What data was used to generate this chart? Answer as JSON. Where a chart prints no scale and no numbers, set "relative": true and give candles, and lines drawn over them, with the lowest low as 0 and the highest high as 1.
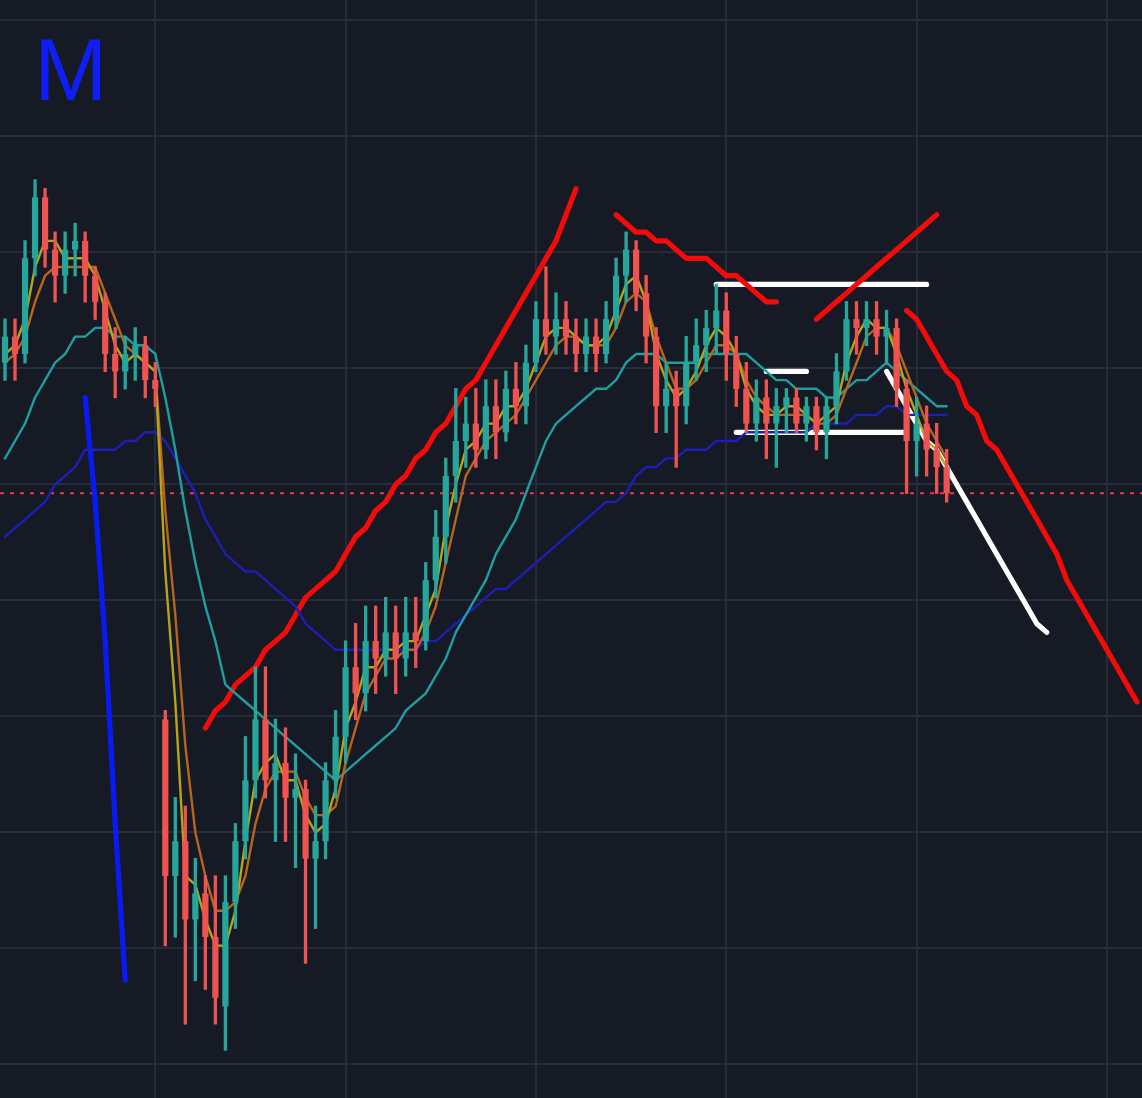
{
  "chart_data": {
    "type": "candlestick",
    "relative": true,
    "grid": true,
    "tick_labels": false,
    "marker": "none",
    "categories": [
      null,
      null,
      null,
      null,
      null,
      null,
      null,
      null,
      null,
      null,
      null,
      null,
      null,
      null,
      null,
      null,
      null,
      null,
      null,
      null,
      null,
      null,
      null,
      null,
      null,
      null,
      null,
      null,
      null,
      null,
      null,
      null,
      null,
      null,
      null,
      null,
      null,
      null,
      null,
      null,
      null,
      null,
      null,
      null,
      null,
      null,
      null,
      null,
      null,
      null,
      null,
      null,
      null,
      null,
      null,
      null,
      null,
      null,
      null,
      null,
      null,
      null,
      null,
      null,
      null,
      null,
      null,
      null,
      null,
      null,
      null,
      null,
      null,
      null,
      null,
      null,
      null,
      null,
      null,
      null,
      null,
      null,
      null,
      null,
      null,
      null,
      null,
      null,
      null,
      null,
      null,
      null,
      null,
      null,
      null,
      null,
      null,
      null,
      null,
      null,
      null,
      null,
      null,
      null,
      null,
      null,
      null,
      null,
      null,
      null,
      null,
      null,
      null,
      null
    ],
    "ohlc": [
      [
        0.79,
        0.84,
        0.77,
        0.82
      ],
      [
        0.82,
        0.84,
        0.77,
        0.8
      ],
      [
        0.8,
        0.93,
        0.79,
        0.91
      ],
      [
        0.91,
        1.0,
        0.89,
        0.98
      ],
      [
        0.98,
        0.99,
        0.9,
        0.92
      ],
      [
        0.92,
        0.94,
        0.86,
        0.89
      ],
      [
        0.89,
        0.94,
        0.87,
        0.92
      ],
      [
        0.92,
        0.95,
        0.89,
        0.93
      ],
      [
        0.93,
        0.94,
        0.86,
        0.89
      ],
      [
        0.89,
        0.9,
        0.84,
        0.86
      ],
      [
        0.86,
        0.87,
        0.78,
        0.8
      ],
      [
        0.8,
        0.83,
        0.75,
        0.78
      ],
      [
        0.78,
        0.82,
        0.76,
        0.8
      ],
      [
        0.8,
        0.83,
        0.77,
        0.81
      ],
      [
        0.81,
        0.82,
        0.75,
        0.77
      ],
      [
        0.77,
        0.79,
        0.74,
        0.76
      ],
      [
        0.38,
        0.39,
        0.12,
        0.2
      ],
      [
        0.2,
        0.29,
        0.13,
        0.24
      ],
      [
        0.24,
        0.28,
        0.03,
        0.15
      ],
      [
        0.15,
        0.22,
        0.08,
        0.18
      ],
      [
        0.18,
        0.2,
        0.07,
        0.13
      ],
      [
        0.13,
        0.2,
        0.03,
        0.06
      ],
      [
        0.05,
        0.2,
        0,
        0.17
      ],
      [
        0.17,
        0.26,
        0.14,
        0.24
      ],
      [
        0.24,
        0.36,
        0.22,
        0.31
      ],
      [
        0.31,
        0.44,
        0.29,
        0.38
      ],
      [
        0.38,
        0.44,
        0.29,
        0.31
      ],
      [
        0.31,
        0.38,
        0.24,
        0.33
      ],
      [
        0.33,
        0.37,
        0.24,
        0.29
      ],
      [
        0.29,
        0.34,
        0.21,
        0.3
      ],
      [
        0.3,
        0.31,
        0.1,
        0.22
      ],
      [
        0.22,
        0.28,
        0.14,
        0.24
      ],
      [
        0.24,
        0.33,
        0.22,
        0.31
      ],
      [
        0.31,
        0.39,
        0.29,
        0.36
      ],
      [
        0.36,
        0.47,
        0.33,
        0.44
      ],
      [
        0.44,
        0.49,
        0.38,
        0.41
      ],
      [
        0.41,
        0.51,
        0.39,
        0.47
      ],
      [
        0.47,
        0.51,
        0.41,
        0.45
      ],
      [
        0.45,
        0.52,
        0.43,
        0.48
      ],
      [
        0.48,
        0.51,
        0.41,
        0.45
      ],
      [
        0.45,
        0.52,
        0.43,
        0.48
      ],
      [
        0.48,
        0.52,
        0.44,
        0.47
      ],
      [
        0.47,
        0.56,
        0.46,
        0.54
      ],
      [
        0.54,
        0.62,
        0.52,
        0.59
      ],
      [
        0.59,
        0.68,
        0.56,
        0.66
      ],
      [
        0.66,
        0.76,
        0.63,
        0.7
      ],
      [
        0.7,
        0.75,
        0.67,
        0.72
      ],
      [
        0.72,
        0.76,
        0.67,
        0.69
      ],
      [
        0.69,
        0.77,
        0.68,
        0.74
      ],
      [
        0.74,
        0.77,
        0.68,
        0.71
      ],
      [
        0.71,
        0.78,
        0.7,
        0.76
      ],
      [
        0.76,
        0.79,
        0.72,
        0.74
      ],
      [
        0.74,
        0.81,
        0.72,
        0.79
      ],
      [
        0.79,
        0.86,
        0.78,
        0.84
      ],
      [
        0.84,
        0.9,
        0.8,
        0.82
      ],
      [
        0.82,
        0.87,
        0.8,
        0.84
      ],
      [
        0.84,
        0.86,
        0.8,
        0.82
      ],
      [
        0.82,
        0.84,
        0.78,
        0.8
      ],
      [
        0.8,
        0.84,
        0.78,
        0.82
      ],
      [
        0.82,
        0.84,
        0.78,
        0.8
      ],
      [
        0.8,
        0.86,
        0.79,
        0.84
      ],
      [
        0.84,
        0.91,
        0.83,
        0.89
      ],
      [
        0.89,
        0.94,
        0.86,
        0.92
      ],
      [
        0.92,
        0.93,
        0.85,
        0.87
      ],
      [
        0.87,
        0.89,
        0.79,
        0.82
      ],
      [
        0.82,
        0.83,
        0.71,
        0.74
      ],
      [
        0.74,
        0.79,
        0.71,
        0.76
      ],
      [
        0.76,
        0.78,
        0.67,
        0.74
      ],
      [
        0.74,
        0.82,
        0.72,
        0.79
      ],
      [
        0.79,
        0.84,
        0.77,
        0.81
      ],
      [
        0.81,
        0.85,
        0.78,
        0.83
      ],
      [
        0.83,
        0.88,
        0.8,
        0.85
      ],
      [
        0.85,
        0.87,
        0.77,
        0.8
      ],
      [
        0.8,
        0.82,
        0.74,
        0.76
      ],
      [
        0.76,
        0.79,
        0.71,
        0.72
      ],
      [
        0.72,
        0.77,
        0.7,
        0.75
      ],
      [
        0.75,
        0.77,
        0.68,
        0.72
      ],
      [
        0.72,
        0.76,
        0.67,
        0.74
      ],
      [
        0.74,
        0.76,
        0.71,
        0.75
      ],
      [
        0.75,
        0.76,
        0.71,
        0.72
      ],
      [
        0.72,
        0.75,
        0.7,
        0.74
      ],
      [
        0.74,
        0.75,
        0.69,
        0.71
      ],
      [
        0.71,
        0.75,
        0.68,
        0.74
      ],
      [
        0.74,
        0.8,
        0.72,
        0.78
      ],
      [
        0.78,
        0.86,
        0.77,
        0.84
      ],
      [
        0.84,
        0.86,
        0.8,
        0.83
      ],
      [
        0.83,
        0.86,
        0.81,
        0.84
      ],
      [
        0.84,
        0.86,
        0.8,
        0.82
      ],
      [
        0.82,
        0.85,
        0.79,
        0.83
      ],
      [
        0.83,
        0.84,
        0.74,
        0.76
      ],
      [
        0.76,
        0.77,
        0.64,
        0.7
      ],
      [
        0.7,
        0.75,
        0.66,
        0.72
      ],
      [
        0.72,
        0.74,
        0.66,
        0.69
      ],
      [
        0.69,
        0.72,
        0.64,
        0.67
      ],
      [
        0.67,
        0.69,
        0.63,
        0.64
      ],
      null,
      null,
      null,
      null,
      null,
      null,
      null,
      null,
      null,
      null,
      null,
      null,
      null,
      null,
      null,
      null,
      null,
      null,
      null
    ],
    "colors": [
      "#26a69a",
      "#ef5350",
      "#26a69a",
      "#26a69a",
      "#ef5350",
      "#ef5350",
      "#26a69a",
      "#26a69a",
      "#ef5350",
      "#ef5350",
      "#ef5350",
      "#ef5350",
      "#26a69a",
      "#26a69a",
      "#ef5350",
      "#ef5350",
      "#ef5350",
      "#26a69a",
      "#ef5350",
      "#26a69a",
      "#ef5350",
      "#ef5350",
      "#26a69a",
      "#26a69a",
      "#26a69a",
      "#26a69a",
      "#ef5350",
      "#26a69a",
      "#ef5350",
      "#26a69a",
      "#ef5350",
      "#26a69a",
      "#26a69a",
      "#26a69a",
      "#26a69a",
      "#ef5350",
      "#26a69a",
      "#ef5350",
      "#26a69a",
      "#ef5350",
      "#26a69a",
      "#ef5350",
      "#26a69a",
      "#26a69a",
      "#26a69a",
      "#26a69a",
      "#26a69a",
      "#ef5350",
      "#26a69a",
      "#ef5350",
      "#26a69a",
      "#ef5350",
      "#26a69a",
      "#26a69a",
      "#ef5350",
      "#26a69a",
      "#ef5350",
      "#ef5350",
      "#26a69a",
      "#ef5350",
      "#26a69a",
      "#26a69a",
      "#26a69a",
      "#ef5350",
      "#ef5350",
      "#ef5350",
      "#26a69a",
      "#ef5350",
      "#26a69a",
      "#26a69a",
      "#26a69a",
      "#26a69a",
      "#ef5350",
      "#ef5350",
      "#ef5350",
      "#26a69a",
      "#ef5350",
      "#26a69a",
      "#26a69a",
      "#ef5350",
      "#26a69a",
      "#ef5350",
      "#26a69a",
      "#26a69a",
      "#26a69a",
      "#ef5350",
      "#26a69a",
      "#ef5350",
      "#26a69a",
      "#ef5350",
      "#ef5350",
      "#26a69a",
      "#ef5350",
      "#ef5350",
      "#ef5350",
      null,
      null,
      null,
      null,
      null,
      null,
      null,
      null,
      null,
      null,
      null,
      null,
      null,
      null,
      null,
      null,
      null,
      null,
      null
    ],
    "series": [
      {
        "type": "line",
        "color": "#b8a41a",
        "values": [
          0.8,
          0.81,
          0.84,
          0.9,
          0.93,
          0.93,
          0.91,
          0.91,
          0.91,
          0.89,
          0.85,
          0.81,
          0.79,
          0.8,
          0.79,
          0.78,
          0.55,
          0.4,
          0.2,
          0.19,
          0.15,
          0.12,
          0.12,
          0.16,
          0.24,
          0.31,
          0.33,
          0.34,
          0.31,
          0.31,
          0.27,
          0.25,
          0.26,
          0.3,
          0.37,
          0.4,
          0.44,
          0.44,
          0.46,
          0.46,
          0.47,
          0.47,
          0.5,
          0.53,
          0.6,
          0.65,
          0.69,
          0.7,
          0.72,
          0.72,
          0.74,
          0.74,
          0.76,
          0.79,
          0.82,
          0.83,
          0.83,
          0.82,
          0.81,
          0.81,
          0.82,
          0.85,
          0.88,
          0.89,
          0.86,
          0.8,
          0.77,
          0.75,
          0.76,
          0.78,
          0.81,
          0.83,
          0.82,
          0.8,
          0.76,
          0.74,
          0.73,
          0.73,
          0.74,
          0.74,
          0.73,
          0.72,
          0.73,
          0.74,
          0.79,
          0.82,
          0.84,
          0.83,
          0.83,
          0.8,
          0.76,
          0.73,
          0.7,
          0.69,
          0.67,
          null,
          null,
          null,
          null,
          null,
          null,
          null,
          null,
          null,
          null,
          null,
          null,
          null,
          null,
          null,
          null,
          null,
          null,
          null
        ]
      },
      {
        "type": "line",
        "color": "#b8641e",
        "values": [
          0.79,
          0.8,
          0.82,
          0.86,
          0.89,
          0.9,
          0.9,
          0.9,
          0.9,
          0.9,
          0.87,
          0.84,
          0.81,
          0.8,
          0.79,
          0.78,
          0.62,
          0.5,
          0.35,
          0.25,
          0.2,
          0.16,
          0.16,
          0.17,
          0.2,
          0.26,
          0.3,
          0.32,
          0.32,
          0.32,
          0.29,
          0.27,
          0.27,
          0.28,
          0.33,
          0.37,
          0.41,
          0.43,
          0.45,
          0.45,
          0.46,
          0.46,
          0.48,
          0.51,
          0.56,
          0.61,
          0.66,
          0.68,
          0.7,
          0.71,
          0.72,
          0.73,
          0.75,
          0.77,
          0.79,
          0.81,
          0.82,
          0.82,
          0.81,
          0.81,
          0.81,
          0.83,
          0.86,
          0.87,
          0.86,
          0.82,
          0.79,
          0.76,
          0.76,
          0.77,
          0.79,
          0.81,
          0.81,
          0.8,
          0.77,
          0.75,
          0.74,
          0.73,
          0.73,
          0.73,
          0.73,
          0.72,
          0.72,
          0.73,
          0.76,
          0.79,
          0.82,
          0.83,
          0.83,
          0.81,
          0.78,
          0.75,
          0.72,
          0.7,
          0.68,
          null,
          null,
          null,
          null,
          null,
          null,
          null,
          null,
          null,
          null,
          null,
          null,
          null,
          null,
          null,
          null,
          null,
          null,
          null
        ]
      },
      {
        "type": "line",
        "color": "#1f9ea0",
        "values": [
          0.68,
          0.7,
          0.72,
          0.75,
          0.77,
          0.79,
          0.8,
          0.82,
          0.82,
          0.83,
          0.83,
          0.82,
          0.82,
          0.81,
          0.81,
          0.8,
          0.75,
          0.69,
          0.62,
          0.56,
          0.51,
          0.47,
          0.42,
          0.41,
          0.4,
          0.39,
          0.38,
          0.37,
          0.36,
          0.35,
          0.34,
          0.33,
          0.32,
          0.31,
          0.32,
          0.33,
          0.34,
          0.35,
          0.36,
          0.37,
          0.39,
          0.4,
          0.41,
          0.43,
          0.45,
          0.48,
          0.5,
          0.52,
          0.54,
          0.57,
          0.59,
          0.61,
          0.64,
          0.67,
          0.7,
          0.72,
          0.73,
          0.74,
          0.75,
          0.76,
          0.76,
          0.77,
          0.79,
          0.8,
          0.8,
          0.8,
          0.79,
          0.79,
          0.79,
          0.79,
          0.8,
          0.8,
          0.8,
          0.8,
          0.8,
          0.79,
          0.78,
          0.77,
          0.77,
          0.76,
          0.76,
          0.76,
          0.75,
          0.75,
          0.76,
          0.77,
          0.77,
          0.78,
          0.79,
          0.78,
          0.77,
          0.76,
          0.75,
          0.74,
          0.74,
          null,
          null,
          null,
          null,
          null,
          null,
          null,
          null,
          null,
          null,
          null,
          null,
          null,
          null,
          null,
          null,
          null,
          null,
          null
        ]
      },
      {
        "type": "line",
        "color": "#1c1fb5",
        "values": [
          0.59,
          0.6,
          0.61,
          0.62,
          0.63,
          0.65,
          0.66,
          0.67,
          0.69,
          0.69,
          0.69,
          0.69,
          0.7,
          0.7,
          0.71,
          0.71,
          0.7,
          0.68,
          0.66,
          0.64,
          0.61,
          0.59,
          0.57,
          0.56,
          0.55,
          0.55,
          0.54,
          0.53,
          0.52,
          0.51,
          0.49,
          0.48,
          0.47,
          0.46,
          0.46,
          0.46,
          0.46,
          0.46,
          0.46,
          0.46,
          0.46,
          0.46,
          0.47,
          0.47,
          0.48,
          0.49,
          0.5,
          0.51,
          0.52,
          0.53,
          0.53,
          0.54,
          0.55,
          0.56,
          0.57,
          0.58,
          0.59,
          0.6,
          0.61,
          0.62,
          0.63,
          0.63,
          0.64,
          0.66,
          0.67,
          0.67,
          0.68,
          0.68,
          0.69,
          0.69,
          0.69,
          0.7,
          0.7,
          0.7,
          0.71,
          0.71,
          0.71,
          0.71,
          0.71,
          0.71,
          0.71,
          0.72,
          0.72,
          0.72,
          0.72,
          0.73,
          0.73,
          0.73,
          0.74,
          0.74,
          0.73,
          0.73,
          0.73,
          0.73,
          0.73,
          null,
          null,
          null,
          null,
          null,
          null,
          null,
          null,
          null,
          null,
          null,
          null,
          null,
          null,
          null,
          null,
          null,
          null,
          null
        ]
      },
      {
        "type": "line",
        "color": "#f50a0a",
        "values": [
          null,
          null,
          null,
          null,
          null,
          null,
          null,
          null,
          null,
          null,
          null,
          null,
          null,
          null,
          null,
          null,
          null,
          null,
          null,
          null,
          0.37,
          0.39,
          0.4,
          0.42,
          0.43,
          0.44,
          0.46,
          0.47,
          0.48,
          0.5,
          0.52,
          0.53,
          0.54,
          0.55,
          0.57,
          0.59,
          0.6,
          0.62,
          0.63,
          0.65,
          0.66,
          0.68,
          0.69,
          0.71,
          0.72,
          0.74,
          0.76,
          0.77,
          0.79,
          0.81,
          0.83,
          0.85,
          0.87,
          0.89,
          0.91,
          0.93,
          0.96,
          0.99,
          null,
          null,
          null,
          null,
          null,
          null,
          null,
          null,
          null,
          null,
          null,
          null,
          null,
          null,
          null,
          null,
          null,
          null,
          null,
          null,
          null,
          null,
          null,
          null,
          null,
          null,
          null,
          null,
          null,
          null,
          null,
          null,
          null,
          null,
          null,
          null,
          null,
          null,
          null,
          null,
          null,
          null,
          null,
          null,
          null,
          null,
          null,
          null,
          null,
          null,
          null,
          null,
          null,
          null,
          null,
          null
        ]
      },
      {
        "type": "line",
        "color": "#f50a0a",
        "values": [
          null,
          null,
          null,
          null,
          null,
          null,
          null,
          null,
          null,
          null,
          null,
          null,
          null,
          null,
          null,
          null,
          null,
          null,
          null,
          null,
          null,
          null,
          null,
          null,
          null,
          null,
          null,
          null,
          null,
          null,
          null,
          null,
          null,
          null,
          null,
          null,
          null,
          null,
          null,
          null,
          null,
          null,
          null,
          null,
          null,
          null,
          null,
          null,
          null,
          null,
          null,
          null,
          null,
          null,
          null,
          null,
          null,
          null,
          null,
          null,
          null,
          0.96,
          0.95,
          0.94,
          0.94,
          0.93,
          0.93,
          0.92,
          0.91,
          0.91,
          0.91,
          0.9,
          0.89,
          0.89,
          0.88,
          0.87,
          0.86,
          0.86,
          null,
          null,
          null,
          null,
          null,
          null,
          null,
          null,
          null,
          null,
          null,
          null,
          null,
          null,
          null,
          null,
          null,
          null,
          null,
          null,
          null,
          null,
          null,
          null,
          null,
          null,
          null,
          null,
          null,
          null,
          null,
          null,
          null,
          null,
          null,
          null
        ]
      },
      {
        "type": "line",
        "color": "#f50a0a",
        "values": [
          null,
          null,
          null,
          null,
          null,
          null,
          null,
          null,
          null,
          null,
          null,
          null,
          null,
          null,
          null,
          null,
          null,
          null,
          null,
          null,
          null,
          null,
          null,
          null,
          null,
          null,
          null,
          null,
          null,
          null,
          null,
          null,
          null,
          null,
          null,
          null,
          null,
          null,
          null,
          null,
          null,
          null,
          null,
          null,
          null,
          null,
          null,
          null,
          null,
          null,
          null,
          null,
          null,
          null,
          null,
          null,
          null,
          null,
          null,
          null,
          null,
          null,
          null,
          null,
          null,
          null,
          null,
          null,
          null,
          null,
          null,
          null,
          null,
          null,
          null,
          null,
          null,
          null,
          null,
          null,
          null,
          0.84,
          0.85,
          0.86,
          0.87,
          0.88,
          0.89,
          0.9,
          0.91,
          0.92,
          0.93,
          0.94,
          0.95,
          0.96,
          null,
          null,
          null,
          null,
          null,
          null,
          null,
          null,
          null,
          null,
          null,
          null,
          null,
          null,
          null,
          null,
          null,
          null,
          null,
          null
        ]
      },
      {
        "type": "line",
        "color": "#f50a0a",
        "values": [
          null,
          null,
          null,
          null,
          null,
          null,
          null,
          null,
          null,
          null,
          null,
          null,
          null,
          null,
          null,
          null,
          null,
          null,
          null,
          null,
          null,
          null,
          null,
          null,
          null,
          null,
          null,
          null,
          null,
          null,
          null,
          null,
          null,
          null,
          null,
          null,
          null,
          null,
          null,
          null,
          null,
          null,
          null,
          null,
          null,
          null,
          null,
          null,
          null,
          null,
          null,
          null,
          null,
          null,
          null,
          null,
          null,
          null,
          null,
          null,
          null,
          null,
          null,
          null,
          null,
          null,
          null,
          null,
          null,
          null,
          null,
          null,
          null,
          null,
          null,
          null,
          null,
          null,
          null,
          null,
          null,
          null,
          null,
          null,
          null,
          null,
          null,
          null,
          null,
          null,
          0.85,
          0.84,
          0.82,
          0.8,
          0.78,
          0.77,
          0.74,
          0.73,
          0.7,
          0.69,
          0.67,
          0.65,
          0.63,
          0.61,
          0.59,
          0.57,
          0.54,
          0.52,
          0.5,
          0.48,
          0.46,
          0.44,
          0.42,
          0.4
        ]
      },
      {
        "type": "line",
        "color": "#ffffff",
        "values": [
          null,
          null,
          null,
          null,
          null,
          null,
          null,
          null,
          null,
          null,
          null,
          null,
          null,
          null,
          null,
          null,
          null,
          null,
          null,
          null,
          null,
          null,
          null,
          null,
          null,
          null,
          null,
          null,
          null,
          null,
          null,
          null,
          null,
          null,
          null,
          null,
          null,
          null,
          null,
          null,
          null,
          null,
          null,
          null,
          null,
          null,
          null,
          null,
          null,
          null,
          null,
          null,
          null,
          null,
          null,
          null,
          null,
          null,
          null,
          null,
          null,
          null,
          null,
          null,
          null,
          null,
          null,
          null,
          null,
          null,
          null,
          0.88,
          0.88,
          0.88,
          0.88,
          0.88,
          0.88,
          0.88,
          0.88,
          0.88,
          0.88,
          0.88,
          0.88,
          0.88,
          0.88,
          0.88,
          0.88,
          0.88,
          0.88,
          0.88,
          0.88,
          0.88,
          0.88,
          null,
          null,
          null,
          null,
          null,
          null,
          null,
          null,
          null,
          null,
          null,
          null,
          null,
          null,
          null,
          null,
          null,
          null,
          null,
          null,
          null
        ]
      },
      {
        "type": "line",
        "color": "#ffffff",
        "values": [
          null,
          null,
          null,
          null,
          null,
          null,
          null,
          null,
          null,
          null,
          null,
          null,
          null,
          null,
          null,
          null,
          null,
          null,
          null,
          null,
          null,
          null,
          null,
          null,
          null,
          null,
          null,
          null,
          null,
          null,
          null,
          null,
          null,
          null,
          null,
          null,
          null,
          null,
          null,
          null,
          null,
          null,
          null,
          null,
          null,
          null,
          null,
          null,
          null,
          null,
          null,
          null,
          null,
          null,
          null,
          null,
          null,
          null,
          null,
          null,
          null,
          null,
          null,
          null,
          null,
          null,
          null,
          null,
          null,
          null,
          null,
          null,
          null,
          0.71,
          0.71,
          0.71,
          0.71,
          0.71,
          0.71,
          0.71,
          0.71,
          0.71,
          0.71,
          0.71,
          0.71,
          0.71,
          0.71,
          0.71,
          0.71,
          0.71,
          0.71,
          null,
          null,
          null,
          null,
          null,
          null,
          null,
          null,
          null,
          null,
          null,
          null,
          null,
          null,
          null,
          null,
          null,
          null,
          null,
          null,
          null,
          null,
          null
        ]
      },
      {
        "type": "line",
        "color": "#ffffff",
        "values": [
          null,
          null,
          null,
          null,
          null,
          null,
          null,
          null,
          null,
          null,
          null,
          null,
          null,
          null,
          null,
          null,
          null,
          null,
          null,
          null,
          null,
          null,
          null,
          null,
          null,
          null,
          null,
          null,
          null,
          null,
          null,
          null,
          null,
          null,
          null,
          null,
          null,
          null,
          null,
          null,
          null,
          null,
          null,
          null,
          null,
          null,
          null,
          null,
          null,
          null,
          null,
          null,
          null,
          null,
          null,
          null,
          null,
          null,
          null,
          null,
          null,
          null,
          null,
          null,
          null,
          null,
          null,
          null,
          null,
          null,
          null,
          null,
          null,
          null,
          null,
          null,
          0.78,
          0.78,
          0.78,
          0.78,
          0.78,
          null,
          null,
          null,
          null,
          null,
          null,
          null,
          null,
          null,
          null,
          null,
          null,
          null,
          null,
          null,
          null,
          null,
          null,
          null,
          null,
          null,
          null,
          null,
          null,
          null,
          null,
          null,
          null,
          null,
          null,
          null,
          null,
          null
        ]
      },
      {
        "type": "line",
        "color": "#ffffff",
        "values": [
          null,
          null,
          null,
          null,
          null,
          null,
          null,
          null,
          null,
          null,
          null,
          null,
          null,
          null,
          null,
          null,
          null,
          null,
          null,
          null,
          null,
          null,
          null,
          null,
          null,
          null,
          null,
          null,
          null,
          null,
          null,
          null,
          null,
          null,
          null,
          null,
          null,
          null,
          null,
          null,
          null,
          null,
          null,
          null,
          null,
          null,
          null,
          null,
          null,
          null,
          null,
          null,
          null,
          null,
          null,
          null,
          null,
          null,
          null,
          null,
          null,
          null,
          null,
          null,
          null,
          null,
          null,
          null,
          null,
          null,
          null,
          null,
          null,
          null,
          null,
          null,
          null,
          null,
          null,
          null,
          null,
          null,
          null,
          null,
          null,
          null,
          null,
          null,
          0.78,
          0.76,
          0.74,
          0.72,
          0.7,
          0.69,
          0.67,
          0.65,
          0.63,
          0.61,
          0.59,
          0.57,
          0.55,
          0.53,
          0.51,
          0.49,
          0.48,
          null,
          null,
          null,
          null,
          null,
          null,
          null,
          null,
          null
        ]
      },
      {
        "type": "line",
        "color": "#0a1af5",
        "values": [
          null,
          null,
          null,
          null,
          null,
          null,
          null,
          null,
          0.75,
          0.63,
          0.47,
          0.26,
          0.08,
          null,
          null,
          null,
          null,
          null,
          null,
          null,
          null,
          null,
          null,
          null,
          null,
          null,
          null,
          null,
          null,
          null,
          null,
          null,
          null,
          null,
          null,
          null,
          null,
          null,
          null,
          null,
          null,
          null,
          null,
          null,
          null,
          null,
          null,
          null,
          null,
          null,
          null,
          null,
          null,
          null,
          null,
          null,
          null,
          null,
          null,
          null,
          null,
          null,
          null,
          null,
          null,
          null,
          null,
          null,
          null,
          null,
          null,
          null,
          null,
          null,
          null,
          null,
          null,
          null,
          null,
          null,
          null,
          null,
          null,
          null,
          null,
          null,
          null,
          null,
          null,
          null,
          null,
          null,
          null,
          null,
          null,
          null,
          null,
          null,
          null,
          null,
          null,
          null,
          null,
          null,
          null,
          null,
          null,
          null,
          null,
          null,
          null,
          null,
          null,
          null
        ]
      }
    ],
    "ref_lines": [
      {
        "axis": "y",
        "value": 0.64,
        "color": "#f23645",
        "line_style": "dotted"
      }
    ],
    "annotations": [
      "M"
    ]
  }
}
